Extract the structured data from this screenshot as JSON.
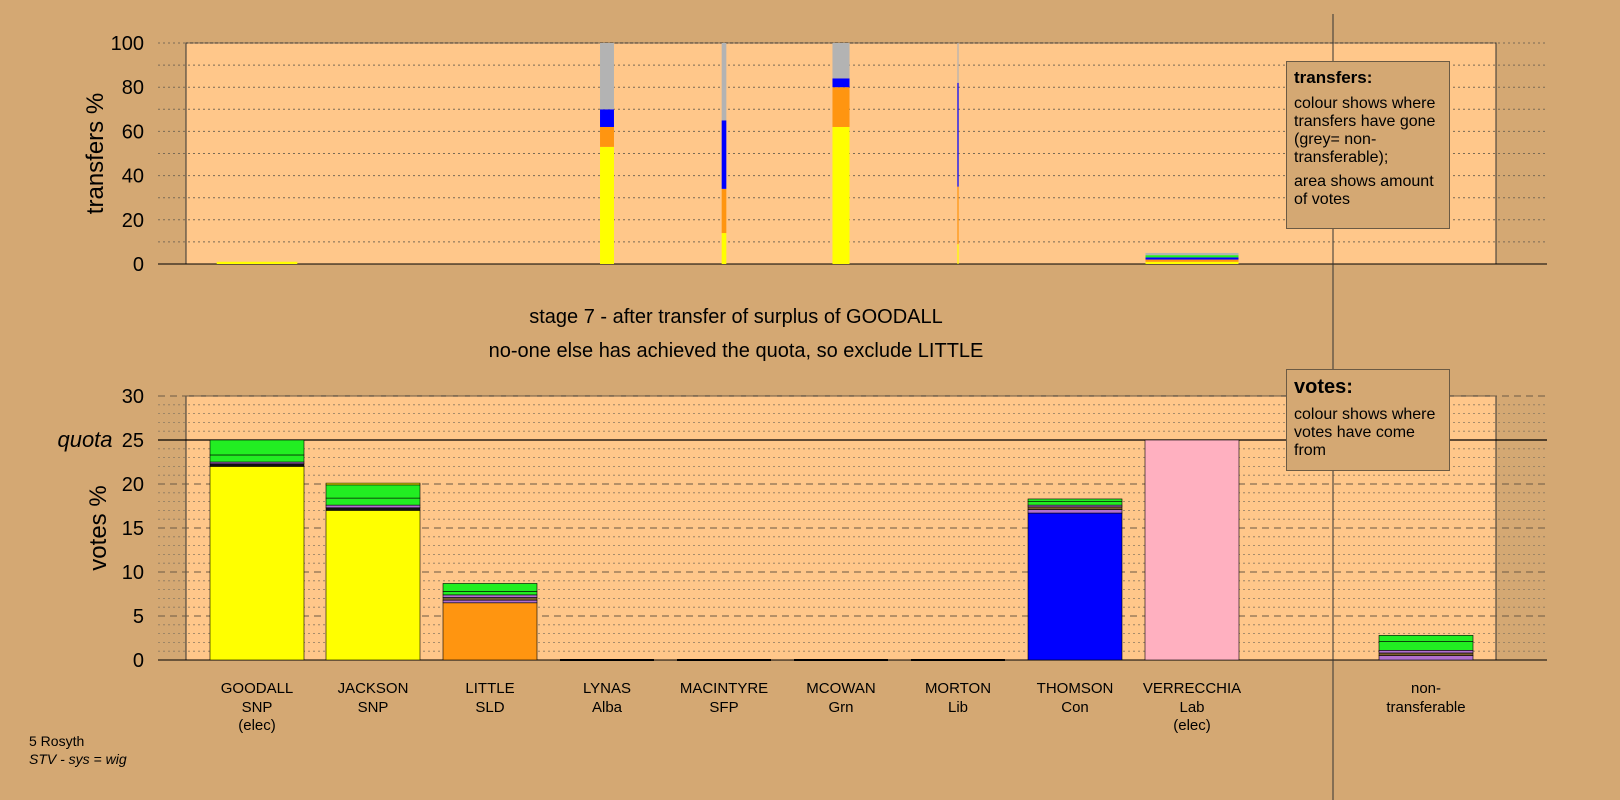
{
  "caption": {
    "line1": "stage 7 - after transfer of surplus of GOODALL",
    "line2": "no-one else has achieved the quota, so exclude LITTLE"
  },
  "legend_transfers": {
    "title": "transfers:",
    "text1": "colour shows where transfers have gone (grey= non-transferable);",
    "text2": "area shows amount of votes"
  },
  "legend_votes": {
    "title": "votes:",
    "text1": "colour shows where votes have come from"
  },
  "footer": {
    "line1": "5 Rosyth",
    "line2": "STV - sys = wig"
  },
  "colors": {
    "background": "#d4a873",
    "plot_bg": "#ffc78a",
    "SNP": "#ffff00",
    "SLD": "#ff9510",
    "Con": "#0000ff",
    "Lab": "#ffb0c0",
    "Grn": "#22ee22",
    "Lib": "#7a5b2f",
    "Alba": "#b06fd0",
    "SFP": "#111111",
    "nontransferable": "#b3b3b3"
  },
  "chart_data": [
    {
      "type": "bar",
      "stacked": true,
      "ylabel": "transfers %",
      "ylim": [
        0,
        100
      ],
      "yticks": [
        0,
        20,
        40,
        60,
        80,
        100
      ],
      "grid": true,
      "categories": [
        "GOODALL",
        "JACKSON",
        "LITTLE",
        "LYNAS",
        "MACINTYRE",
        "MCOWAN",
        "MORTON",
        "THOMSON",
        "VERRECCHIA"
      ],
      "bars": [
        {
          "category": "GOODALL",
          "width_votes": 2.6,
          "segments": [
            {
              "party": "SNP",
              "value": 1
            }
          ]
        },
        {
          "category": "LYNAS",
          "width_votes": 0.45,
          "segments": [
            {
              "party": "SNP",
              "value": 53
            },
            {
              "party": "SLD",
              "value": 9
            },
            {
              "party": "Con",
              "value": 8
            },
            {
              "party": "nontransferable",
              "value": 30
            }
          ]
        },
        {
          "category": "MACINTYRE",
          "width_votes": 0.15,
          "segments": [
            {
              "party": "SNP",
              "value": 14
            },
            {
              "party": "SLD",
              "value": 20
            },
            {
              "party": "Con",
              "value": 31
            },
            {
              "party": "nontransferable",
              "value": 35
            }
          ]
        },
        {
          "category": "MCOWAN",
          "width_votes": 0.55,
          "segments": [
            {
              "party": "SNP",
              "value": 62
            },
            {
              "party": "SLD",
              "value": 18
            },
            {
              "party": "Con",
              "value": 4
            },
            {
              "party": "nontransferable",
              "value": 16
            }
          ]
        },
        {
          "category": "MORTON",
          "width_votes": 0.04,
          "segments": [
            {
              "party": "SNP",
              "value": 9
            },
            {
              "party": "SLD",
              "value": 26
            },
            {
              "party": "Con",
              "value": 47
            },
            {
              "party": "nontransferable",
              "value": 18
            }
          ]
        },
        {
          "category": "VERRECCHIA",
          "width_votes": 3.0,
          "segments": [
            {
              "party": "SNP",
              "value": 1
            },
            {
              "party": "SLD",
              "value": 1
            },
            {
              "party": "Con",
              "value": 1
            },
            {
              "party": "Grn",
              "value": 1
            },
            {
              "party": "nontransferable",
              "value": 1
            }
          ]
        }
      ]
    },
    {
      "type": "bar",
      "stacked": true,
      "ylabel": "votes %",
      "ylim": [
        0,
        30
      ],
      "yticks": [
        0,
        5,
        10,
        15,
        20,
        25,
        30
      ],
      "quota": 25,
      "quota_label": "quota",
      "grid": true,
      "categories": [
        {
          "name": "GOODALL",
          "party": "SNP",
          "note": "(elec)"
        },
        {
          "name": "JACKSON",
          "party": "SNP",
          "note": ""
        },
        {
          "name": "LITTLE",
          "party": "SLD",
          "note": ""
        },
        {
          "name": "LYNAS",
          "party": "Alba",
          "note": ""
        },
        {
          "name": "MACINTYRE",
          "party": "SFP",
          "note": ""
        },
        {
          "name": "MCOWAN",
          "party": "Grn",
          "note": ""
        },
        {
          "name": "MORTON",
          "party": "Lib",
          "note": ""
        },
        {
          "name": "THOMSON",
          "party": "Con",
          "note": ""
        },
        {
          "name": "VERRECCHIA",
          "party": "Lab",
          "note": "(elec)"
        },
        {
          "name": "",
          "party": "",
          "note": ""
        },
        {
          "name": "non-",
          "party": "transferable",
          "note": ""
        }
      ],
      "stacks": [
        [
          {
            "party": "SNP",
            "value": 22.0
          },
          {
            "party": "SFP",
            "value": 0.3
          },
          {
            "party": "Alba",
            "value": 0.2
          },
          {
            "party": "Grn",
            "value": 0.8
          },
          {
            "party": "Grn",
            "value": 1.7
          }
        ],
        [
          {
            "party": "SNP",
            "value": 17.0
          },
          {
            "party": "SFP",
            "value": 0.3
          },
          {
            "party": "Alba",
            "value": 0.3
          },
          {
            "party": "Grn",
            "value": 0.8
          },
          {
            "party": "Grn",
            "value": 1.5
          },
          {
            "party": "SNP",
            "value": 0.2
          }
        ],
        [
          {
            "party": "SLD",
            "value": 6.5
          },
          {
            "party": "Alba",
            "value": 0.3
          },
          {
            "party": "Lib",
            "value": 0.3
          },
          {
            "party": "Alba",
            "value": 0.3
          },
          {
            "party": "Grn",
            "value": 0.4
          },
          {
            "party": "Grn",
            "value": 0.9
          }
        ],
        [
          {
            "party": "Alba",
            "value": 0
          }
        ],
        [
          {
            "party": "SFP",
            "value": 0
          }
        ],
        [
          {
            "party": "Grn",
            "value": 0
          }
        ],
        [
          {
            "party": "Lib",
            "value": 0
          }
        ],
        [
          {
            "party": "Con",
            "value": 16.7
          },
          {
            "party": "Alba",
            "value": 0.4
          },
          {
            "party": "Lib",
            "value": 0.3
          },
          {
            "party": "Alba",
            "value": 0.2
          },
          {
            "party": "Grn",
            "value": 0.4
          },
          {
            "party": "Grn",
            "value": 0.3
          }
        ],
        [
          {
            "party": "Lab",
            "value": 25.0
          }
        ],
        [],
        [
          {
            "party": "Alba",
            "value": 0.5
          },
          {
            "party": "Lib",
            "value": 0.3
          },
          {
            "party": "Alba",
            "value": 0.3
          },
          {
            "party": "Grn",
            "value": 1.0
          },
          {
            "party": "Grn",
            "value": 0.7
          }
        ]
      ]
    }
  ]
}
